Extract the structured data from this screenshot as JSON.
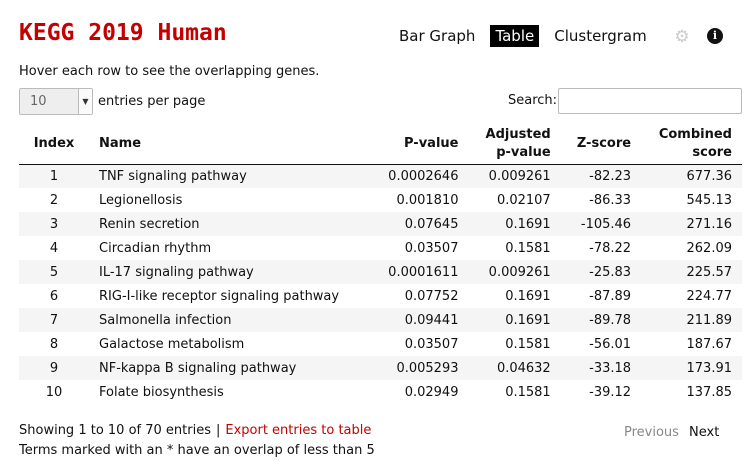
{
  "title": "KEGG 2019 Human",
  "tabs": [
    {
      "label": "Bar Graph",
      "active": false
    },
    {
      "label": "Table",
      "active": true
    },
    {
      "label": "Clustergram",
      "active": false
    }
  ],
  "icons": {
    "settings": "gear-icon",
    "info": "info-icon"
  },
  "hint": "Hover each row to see the overlapping genes.",
  "entries": {
    "value": "10",
    "label": "entries per page"
  },
  "search": {
    "label": "Search:",
    "value": ""
  },
  "table": {
    "headers": {
      "index": "Index",
      "name": "Name",
      "pvalue": "P-value",
      "adj_line1": "Adjusted",
      "adj_line2": "p-value",
      "zscore": "Z-score",
      "comb_line1": "Combined",
      "comb_line2": "score"
    },
    "rows": [
      {
        "index": "1",
        "name": "TNF signaling pathway",
        "pvalue": "0.0002646",
        "adj": "0.009261",
        "z": "-82.23",
        "combined": "677.36"
      },
      {
        "index": "2",
        "name": "Legionellosis",
        "pvalue": "0.001810",
        "adj": "0.02107",
        "z": "-86.33",
        "combined": "545.13"
      },
      {
        "index": "3",
        "name": "Renin secretion",
        "pvalue": "0.07645",
        "adj": "0.1691",
        "z": "-105.46",
        "combined": "271.16"
      },
      {
        "index": "4",
        "name": "Circadian rhythm",
        "pvalue": "0.03507",
        "adj": "0.1581",
        "z": "-78.22",
        "combined": "262.09"
      },
      {
        "index": "5",
        "name": "IL-17 signaling pathway",
        "pvalue": "0.0001611",
        "adj": "0.009261",
        "z": "-25.83",
        "combined": "225.57"
      },
      {
        "index": "6",
        "name": "RIG-I-like receptor signaling pathway",
        "pvalue": "0.07752",
        "adj": "0.1691",
        "z": "-87.89",
        "combined": "224.77"
      },
      {
        "index": "7",
        "name": "Salmonella infection",
        "pvalue": "0.09441",
        "adj": "0.1691",
        "z": "-89.78",
        "combined": "211.89"
      },
      {
        "index": "8",
        "name": "Galactose metabolism",
        "pvalue": "0.03507",
        "adj": "0.1581",
        "z": "-56.01",
        "combined": "187.67"
      },
      {
        "index": "9",
        "name": "NF-kappa B signaling pathway",
        "pvalue": "0.005293",
        "adj": "0.04632",
        "z": "-33.18",
        "combined": "173.91"
      },
      {
        "index": "10",
        "name": "Folate biosynthesis",
        "pvalue": "0.02949",
        "adj": "0.1581",
        "z": "-39.12",
        "combined": "137.85"
      }
    ]
  },
  "footer": {
    "showing": "Showing 1 to 10 of 70 entries",
    "separator": "|",
    "export": "Export entries to table",
    "previous": "Previous",
    "next": "Next",
    "note": "Terms marked with an * have an overlap of less than 5"
  },
  "colors": {
    "accent": "#c40000",
    "active_tab_bg": "#000000",
    "stripe": "#f5f5f5"
  }
}
